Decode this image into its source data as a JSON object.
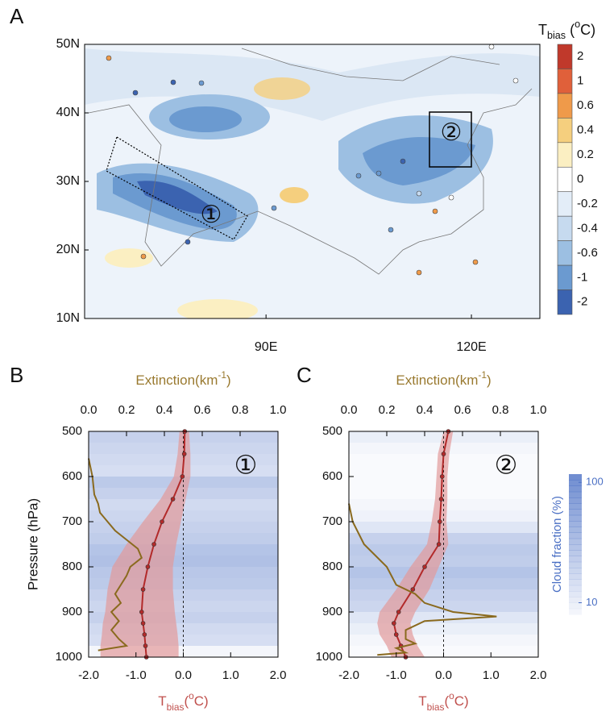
{
  "chart_data": [
    {
      "type": "map",
      "panel_label": "A",
      "xlim": [
        63.5,
        130
      ],
      "ylim": [
        10,
        50
      ],
      "xticks": [
        {
          "value": 90,
          "label": "90E"
        },
        {
          "value": 120,
          "label": "120E"
        }
      ],
      "yticks": [
        {
          "value": 10,
          "label": "10N"
        },
        {
          "value": 20,
          "label": "20N"
        },
        {
          "value": 30,
          "label": "30N"
        },
        {
          "value": 40,
          "label": "40N"
        },
        {
          "value": 50,
          "label": "50N"
        }
      ],
      "regions": [
        {
          "label": "①"
        },
        {
          "label": "②"
        }
      ],
      "colorbar": {
        "title_parts": [
          "T",
          "bias",
          " (",
          "o",
          "C)"
        ],
        "ticks": [
          2,
          1,
          0.6,
          0.4,
          0.2,
          0,
          -0.2,
          -0.4,
          -0.6,
          -1,
          -2
        ],
        "colors": [
          "#c0392b",
          "#e0603a",
          "#ef9a4a",
          "#f5cf7e",
          "#fbefc2",
          "#ffffff",
          "#e3edf8",
          "#c6daef",
          "#9cbfe2",
          "#6b9ad0",
          "#3b63b0"
        ]
      }
    },
    {
      "type": "profile",
      "panel_label": "B",
      "region": "①",
      "ylabel": "Pressure (hPa)",
      "xlabel_parts": [
        "T",
        "bias",
        "(",
        "o",
        "C)"
      ],
      "x2label_parts": [
        "Extinction(km",
        "-1",
        ")"
      ],
      "xlim": [
        -2,
        2
      ],
      "xticks": [
        {
          "value": -2,
          "label": "-2.0"
        },
        {
          "value": -1,
          "label": "-1.0"
        },
        {
          "value": 0,
          "label": "0.0"
        },
        {
          "value": 1,
          "label": "1.0"
        },
        {
          "value": 2,
          "label": "2.0"
        }
      ],
      "x2lim": [
        0,
        1
      ],
      "x2ticks": [
        {
          "value": 0,
          "label": "0.0"
        },
        {
          "value": 0.2,
          "label": "0.2"
        },
        {
          "value": 0.4,
          "label": "0.4"
        },
        {
          "value": 0.6,
          "label": "0.6"
        },
        {
          "value": 0.8,
          "label": "0.8"
        },
        {
          "value": 1,
          "label": "1.0"
        }
      ],
      "ylim": [
        500,
        1000
      ],
      "y_inverted": true,
      "yticks": [
        500,
        600,
        700,
        800,
        900,
        1000
      ],
      "series": [
        {
          "color": "#b22a2a",
          "band_color": "#e29a9a",
          "levels": [
            500,
            550,
            600,
            650,
            700,
            750,
            800,
            850,
            900,
            925,
            950,
            975,
            1000
          ],
          "values": [
            0.03,
            0.02,
            -0.02,
            -0.22,
            -0.45,
            -0.62,
            -0.75,
            -0.85,
            -0.88,
            -0.85,
            -0.82,
            -0.8,
            -0.78
          ],
          "lower": [
            -0.08,
            -0.12,
            -0.2,
            -0.48,
            -0.85,
            -1.2,
            -1.5,
            -1.6,
            -1.65,
            -1.7,
            -1.72,
            -1.75,
            -1.75
          ],
          "upper": [
            0.12,
            0.15,
            0.15,
            0.05,
            -0.05,
            -0.15,
            -0.22,
            -0.22,
            -0.18,
            -0.15,
            -0.12,
            -0.1,
            -0.1
          ]
        },
        {
          "color": "#8a6a1e",
          "axis": "x2",
          "levels": [
            560,
            600,
            640,
            660,
            680,
            700,
            720,
            740,
            760,
            780,
            800,
            820,
            840,
            860,
            880,
            900,
            920,
            940,
            960,
            975,
            985
          ],
          "values": [
            0.0,
            0.02,
            0.03,
            0.05,
            0.06,
            0.1,
            0.14,
            0.2,
            0.26,
            0.28,
            0.22,
            0.2,
            0.17,
            0.14,
            0.17,
            0.12,
            0.16,
            0.12,
            0.16,
            0.2,
            0.05
          ]
        }
      ],
      "cloud_fraction": {
        "levels": [
          512.5,
          537.5,
          562.5,
          587.5,
          612.5,
          637.5,
          662.5,
          687.5,
          712.5,
          737.5,
          762.5,
          787.5,
          812.5,
          837.5,
          862.5,
          887.5,
          912.5,
          937.5,
          962.5,
          987.5
        ],
        "values": [
          25,
          22,
          20,
          18,
          30,
          25,
          20,
          22,
          25,
          28,
          35,
          38,
          32,
          30,
          25,
          22,
          25,
          20,
          18,
          10
        ]
      }
    },
    {
      "type": "profile",
      "panel_label": "C",
      "region": "②",
      "xlabel_parts": [
        "T",
        "bias",
        "(",
        "o",
        "C)"
      ],
      "x2label_parts": [
        "Extinction(km",
        "-1",
        ")"
      ],
      "xlim": [
        -2,
        2
      ],
      "xticks": [
        {
          "value": -2,
          "label": "-2.0"
        },
        {
          "value": -1,
          "label": "-1.0"
        },
        {
          "value": 0,
          "label": "0.0"
        },
        {
          "value": 1,
          "label": "1.0"
        },
        {
          "value": 2,
          "label": "2.0"
        }
      ],
      "x2lim": [
        0,
        1
      ],
      "x2ticks": [
        {
          "value": 0,
          "label": "0.0"
        },
        {
          "value": 0.2,
          "label": "0.2"
        },
        {
          "value": 0.4,
          "label": "0.4"
        },
        {
          "value": 0.6,
          "label": "0.6"
        },
        {
          "value": 0.8,
          "label": "0.8"
        },
        {
          "value": 1,
          "label": "1.0"
        }
      ],
      "ylim": [
        500,
        1000
      ],
      "y_inverted": true,
      "yticks": [
        500,
        600,
        700,
        800,
        900,
        1000
      ],
      "series": [
        {
          "color": "#b22a2a",
          "band_color": "#e29a9a",
          "levels": [
            500,
            550,
            600,
            650,
            700,
            750,
            800,
            850,
            900,
            925,
            950,
            975,
            1000
          ],
          "values": [
            0.1,
            0.0,
            -0.03,
            -0.05,
            -0.08,
            -0.1,
            -0.4,
            -0.65,
            -0.95,
            -1.05,
            -1.0,
            -0.9,
            -0.8
          ],
          "lower": [
            0.0,
            -0.12,
            -0.15,
            -0.18,
            -0.25,
            -0.35,
            -0.7,
            -1.0,
            -1.35,
            -1.4,
            -1.35,
            -1.2,
            -1.1
          ],
          "upper": [
            0.2,
            0.12,
            0.08,
            0.08,
            0.06,
            0.1,
            -0.1,
            -0.3,
            -0.6,
            -0.7,
            -0.65,
            -0.55,
            -0.4
          ]
        },
        {
          "color": "#8a6a1e",
          "axis": "x2",
          "levels": [
            660,
            700,
            750,
            800,
            840,
            860,
            880,
            900,
            910,
            920,
            940,
            960,
            970,
            980,
            990,
            995
          ],
          "values": [
            0.0,
            0.02,
            0.08,
            0.2,
            0.25,
            0.35,
            0.4,
            0.55,
            0.78,
            0.4,
            0.3,
            0.3,
            0.35,
            0.25,
            0.3,
            0.15
          ]
        }
      ],
      "cloud_fraction": {
        "levels": [
          512.5,
          537.5,
          562.5,
          587.5,
          612.5,
          637.5,
          662.5,
          687.5,
          712.5,
          737.5,
          762.5,
          787.5,
          812.5,
          837.5,
          862.5,
          887.5,
          912.5,
          937.5,
          962.5,
          987.5
        ],
        "values": [
          12,
          10,
          9,
          9,
          9,
          9,
          10,
          11,
          15,
          25,
          30,
          28,
          35,
          30,
          25,
          22,
          15,
          12,
          10,
          9
        ]
      },
      "cloud_colorbar": {
        "label": "Cloud fraction (%)",
        "lim": [
          8,
          117
        ],
        "ticks": [
          10,
          100
        ],
        "log": true,
        "color": "#4a6fc4"
      }
    }
  ]
}
